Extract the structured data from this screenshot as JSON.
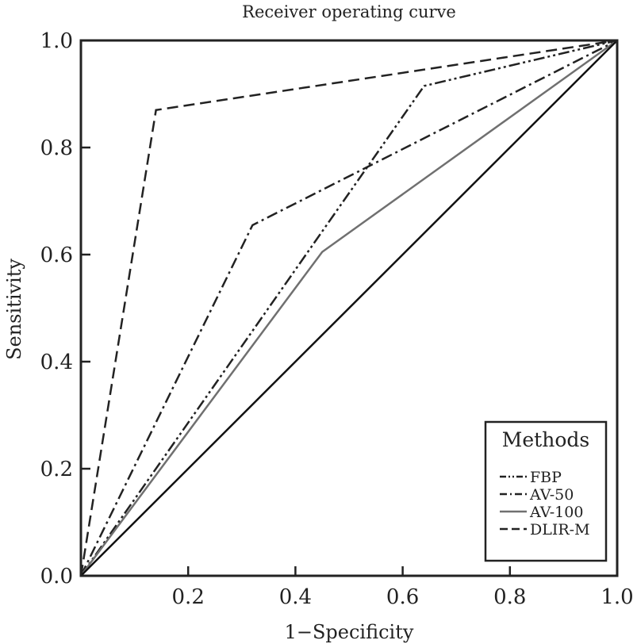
{
  "chart_data": {
    "type": "line",
    "title": "Receiver operating curve",
    "xlabel": "1−Specificity",
    "ylabel": "Sensitivity",
    "xlim": [
      0,
      1
    ],
    "ylim": [
      0,
      1
    ],
    "x_ticks": [
      "0.2",
      "0.4",
      "0.6",
      "0.8",
      "1.0"
    ],
    "y_ticks": [
      "0.0",
      "0.2",
      "0.4",
      "0.6",
      "0.8",
      "1.0"
    ],
    "grid": false,
    "legend": {
      "title": "Methods",
      "placement": "bottom-right"
    },
    "reference_line": {
      "x": [
        0,
        1
      ],
      "y": [
        0,
        1
      ],
      "color": "#111111"
    },
    "series": [
      {
        "name": "FBP",
        "style": "dash-dot-dot",
        "color": "#222222",
        "x": [
          0,
          0.64,
          1
        ],
        "y": [
          0,
          0.915,
          1
        ]
      },
      {
        "name": "AV-50",
        "style": "dash-dot",
        "color": "#222222",
        "x": [
          0,
          0.32,
          1
        ],
        "y": [
          0,
          0.655,
          1
        ]
      },
      {
        "name": "AV-100",
        "style": "solid",
        "color": "#707070",
        "x": [
          0,
          0.45,
          1
        ],
        "y": [
          0,
          0.605,
          1
        ]
      },
      {
        "name": "DLIR-M",
        "style": "dashed",
        "color": "#222222",
        "x": [
          0,
          0.14,
          1
        ],
        "y": [
          0,
          0.87,
          1
        ]
      }
    ]
  }
}
